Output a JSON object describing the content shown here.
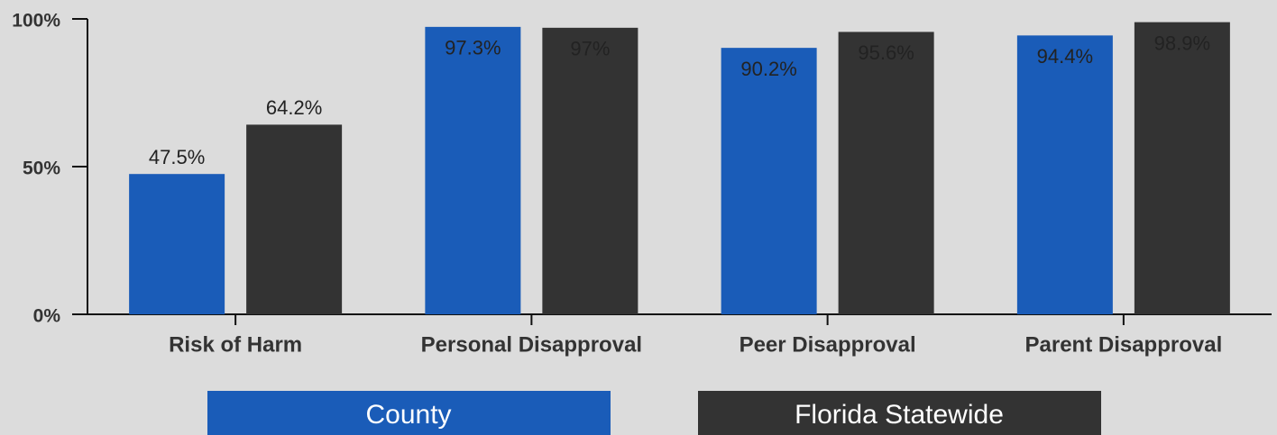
{
  "chart_data": {
    "type": "bar",
    "categories": [
      "Risk of Harm",
      "Personal Disapproval",
      "Peer Disapproval",
      "Parent Disapproval"
    ],
    "series": [
      {
        "name": "County",
        "color": "#1a5cb8",
        "values": [
          47.5,
          97.3,
          90.2,
          94.4
        ],
        "value_labels": [
          "47.5%",
          "97.3%",
          "90.2%",
          "94.4%"
        ]
      },
      {
        "name": "Florida Statewide",
        "color": "#333333",
        "values": [
          64.2,
          97,
          95.6,
          98.9
        ],
        "value_labels": [
          "64.2%",
          "97%",
          "95.6%",
          "98.9%"
        ]
      }
    ],
    "ylim": [
      0,
      100
    ],
    "yticks": [
      {
        "value": 0,
        "label": "0%"
      },
      {
        "value": 50,
        "label": "50%"
      },
      {
        "value": 100,
        "label": "100%"
      }
    ],
    "legend": "bottom"
  }
}
